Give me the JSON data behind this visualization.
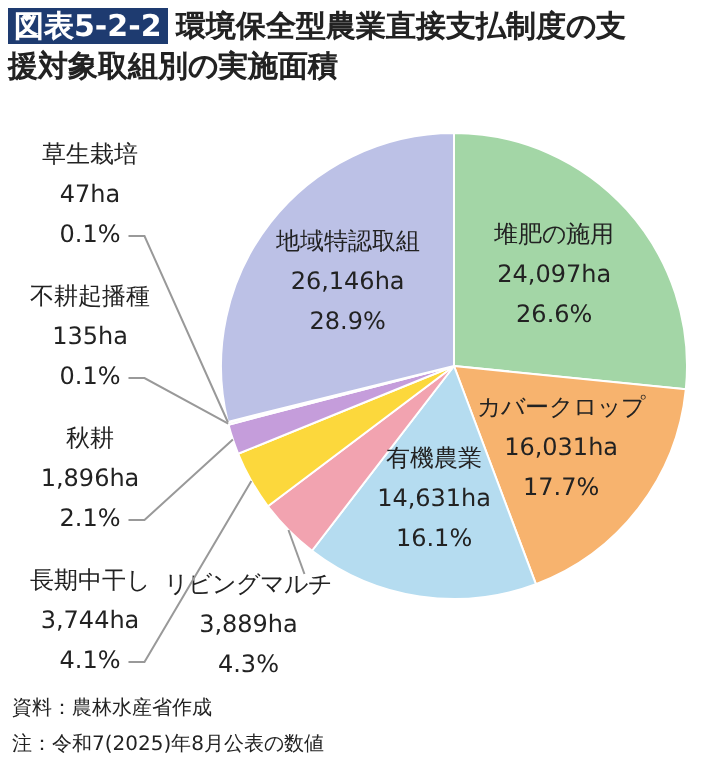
{
  "chart_data": {
    "type": "pie",
    "title": "図表5-2-2 環境保全型農業直接支払制度の支援対象取組別の実施面積",
    "categories": [
      "堆肥の施用",
      "カバークロップ",
      "有機農業",
      "リビングマルチ",
      "長期中干し",
      "秋耕",
      "不耕起播種",
      "草生栽培",
      "地域特認取組"
    ],
    "values": [
      24097,
      16031,
      14631,
      3889,
      3744,
      1896,
      135,
      47,
      26146
    ],
    "value_labels": [
      "24,097ha\n26.6%",
      "16,031ha\n17.7%",
      "14,631ha\n16.1%",
      "3,889ha\n4.3%",
      "3,744ha\n4.1%",
      "1,896ha\n2.1%",
      "135ha\n0.1%",
      "47ha\n0.1%",
      "26,146ha\n28.9%"
    ],
    "colors": [
      "#a3d6a6",
      "#f7b36e",
      "#b5dcf0",
      "#f2a3b0",
      "#fcd83c",
      "#c59ddb",
      "#d4d4d4",
      "#b9dca0",
      "#bcc1e6"
    ],
    "annotations": [
      "資料：農林水産省作成",
      "注：令和7(2025)年8月公表の数値"
    ]
  }
}
